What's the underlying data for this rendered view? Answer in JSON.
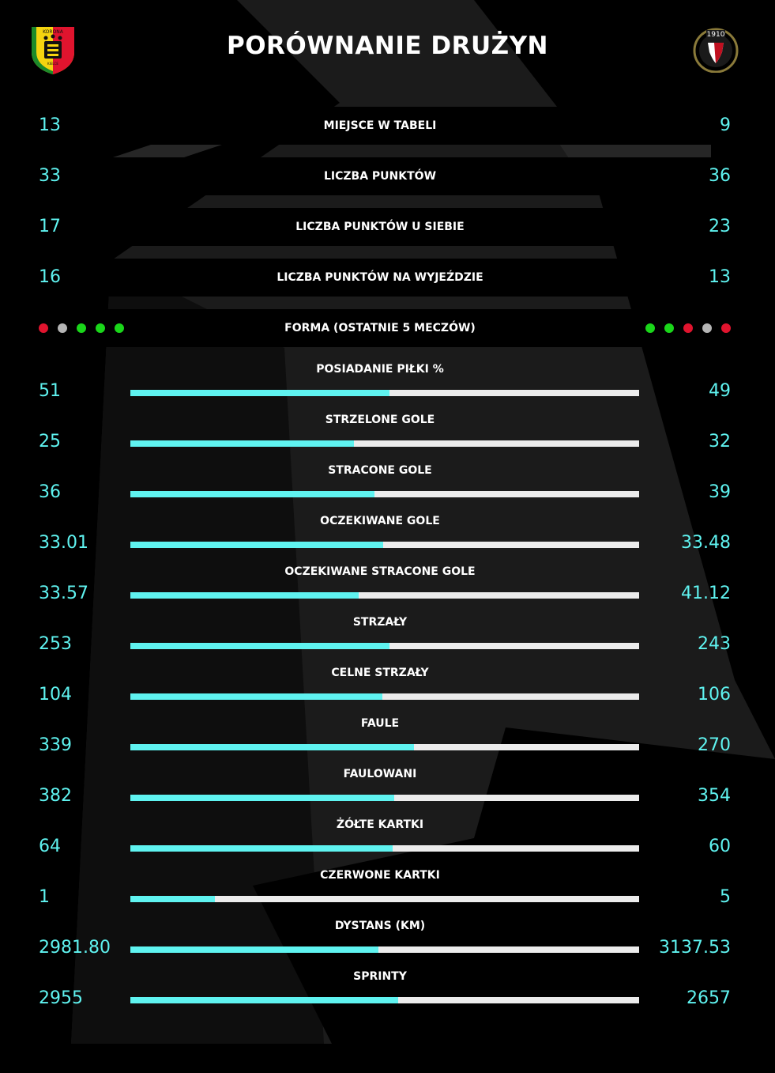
{
  "header": {
    "title": "PORÓWNANIE DRUŻYN",
    "home_logo_icon": "korona-kielce-crest",
    "home_logo_text": [
      "KORONA",
      "KIELCE"
    ],
    "away_logo_icon": "widzew-lodz-crest",
    "away_logo_text": "1910"
  },
  "colors": {
    "accent": "#5ff3f0",
    "win": "#1ad61a",
    "draw": "#b5b5b5",
    "loss": "#e0142e",
    "bar_track": "#ececec",
    "panel": "#000000",
    "background": "#1b1b1b"
  },
  "table_rows": [
    {
      "label": "MIEJSCE W TABELI",
      "home": "13",
      "away": "9"
    },
    {
      "label": "LICZBA PUNKTÓW",
      "home": "33",
      "away": "36"
    },
    {
      "label": "LICZBA PUNKTÓW U SIEBIE",
      "home": "17",
      "away": "23"
    },
    {
      "label": "LICZBA PUNKTÓW NA WYJEŹDZIE",
      "home": "16",
      "away": "13"
    }
  ],
  "form": {
    "label": "FORMA (OSTATNIE 5 MECZÓW)",
    "home": [
      "loss",
      "draw",
      "win",
      "win",
      "win"
    ],
    "away": [
      "win",
      "win",
      "loss",
      "draw",
      "loss"
    ]
  },
  "stats": [
    {
      "label": "POSIADANIE PIŁKI %",
      "home": "51",
      "away": "49",
      "home_share": 0.51
    },
    {
      "label": "STRZELONE GOLE",
      "home": "25",
      "away": "32",
      "home_share": 0.439
    },
    {
      "label": "STRACONE GOLE",
      "home": "36",
      "away": "39",
      "home_share": 0.48
    },
    {
      "label": "OCZEKIWANE GOLE",
      "home": "33.01",
      "away": "33.48",
      "home_share": 0.4965
    },
    {
      "label": "OCZEKIWANE STRACONE GOLE",
      "home": "33.57",
      "away": "41.12",
      "home_share": 0.4495
    },
    {
      "label": "STRZAŁY",
      "home": "253",
      "away": "243",
      "home_share": 0.51
    },
    {
      "label": "CELNE STRZAŁY",
      "home": "104",
      "away": "106",
      "home_share": 0.495
    },
    {
      "label": "FAULE",
      "home": "339",
      "away": "270",
      "home_share": 0.5567
    },
    {
      "label": "FAULOWANI",
      "home": "382",
      "away": "354",
      "home_share": 0.519
    },
    {
      "label": "ŻÓŁTE KARTKI",
      "home": "64",
      "away": "60",
      "home_share": 0.516
    },
    {
      "label": "CZERWONE KARTKI",
      "home": "1",
      "away": "5",
      "home_share": 0.1667
    },
    {
      "label": "DYSTANS (KM)",
      "home": "2981.80",
      "away": "3137.53",
      "home_share": 0.4873
    },
    {
      "label": "SPRINTY",
      "home": "2955",
      "away": "2657",
      "home_share": 0.5266
    }
  ]
}
